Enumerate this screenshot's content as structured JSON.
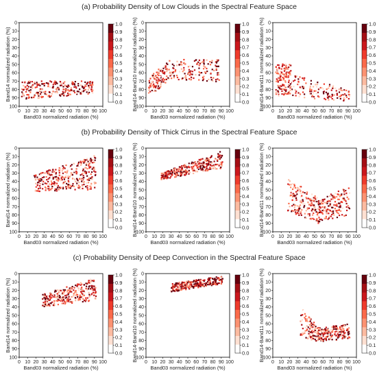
{
  "row_titles": [
    "(a)  Probability Density of Low Clouds in the Spectral Feature Space",
    "(b)  Probability Density of Thick Cirrus in the Spectral Feature Space",
    "(c)  Probability Density of Deep Convection in the Spectral Feature Space"
  ],
  "colorbar": {
    "ticks": [
      "1.0",
      "0.9",
      "0.8",
      "0.7",
      "0.6",
      "0.5",
      "0.4",
      "0.3",
      "0.2",
      "0.1",
      "0.0"
    ],
    "colors": [
      "#ffffff",
      "#fee0d2",
      "#fcbba1",
      "#fc9272",
      "#fb6a4a",
      "#ef3b2c",
      "#cb181d",
      "#a50f15",
      "#67000d"
    ]
  },
  "chart_data": [
    {
      "type": "scatter",
      "row": 0,
      "col": 0,
      "xlabel": "Band03 normalized radiation (%)",
      "ylabel": "Band14 normalized radiation (%)",
      "xlim": [
        0,
        100
      ],
      "ylim": [
        100,
        0
      ],
      "y_inverted": true,
      "xticks": [
        "0",
        "10",
        "20",
        "30",
        "40",
        "50",
        "60",
        "70",
        "80",
        "90",
        "100"
      ],
      "yticks": [
        "0",
        "10",
        "20",
        "30",
        "40",
        "50",
        "60",
        "70",
        "80",
        "90",
        "100"
      ],
      "colorbar_range": [
        0,
        1.0
      ],
      "regions": [
        {
          "x_range": [
            3,
            88
          ],
          "y_top": [
            70,
            70
          ],
          "y_bottom": [
            92,
            85
          ],
          "count": 240,
          "density_mean": 0.65
        }
      ]
    },
    {
      "type": "scatter",
      "row": 0,
      "col": 1,
      "xlabel": "Band03 normalized radiation (%)",
      "ylabel": "Band14-Band10 normalized radiation (%)",
      "xlim": [
        0,
        100
      ],
      "ylim": [
        100,
        0
      ],
      "y_inverted": true,
      "xticks": [
        "0",
        "10",
        "20",
        "30",
        "40",
        "50",
        "60",
        "70",
        "80",
        "90",
        "100"
      ],
      "yticks": [
        "0",
        "10",
        "20",
        "30",
        "40",
        "50",
        "60",
        "70",
        "80",
        "90",
        "100"
      ],
      "colorbar_range": [
        0,
        1.0
      ],
      "regions": [
        {
          "x_range": [
            3,
            25
          ],
          "y_top": [
            65,
            48
          ],
          "y_bottom": [
            88,
            72
          ],
          "count": 110,
          "density_mean": 0.55
        },
        {
          "x_range": [
            25,
            88
          ],
          "y_top": [
            45,
            42
          ],
          "y_bottom": [
            68,
            72
          ],
          "count": 150,
          "density_mean": 0.65
        }
      ]
    },
    {
      "type": "scatter",
      "row": 0,
      "col": 2,
      "xlabel": "Band03 normalized radiation (%)",
      "ylabel": "Band14-Band11 normalized radiation (%)",
      "xlim": [
        0,
        100
      ],
      "ylim": [
        100,
        0
      ],
      "y_inverted": true,
      "xticks": [
        "0",
        "10",
        "20",
        "30",
        "40",
        "50",
        "60",
        "70",
        "80",
        "90",
        "100"
      ],
      "yticks": [
        "0",
        "10",
        "20",
        "30",
        "40",
        "50",
        "60",
        "70",
        "80",
        "90",
        "100"
      ],
      "colorbar_range": [
        0,
        1.0
      ],
      "regions": [
        {
          "x_range": [
            3,
            22
          ],
          "y_top": [
            48,
            50
          ],
          "y_bottom": [
            88,
            85
          ],
          "count": 160,
          "density_mean": 0.5
        },
        {
          "x_range": [
            22,
            92
          ],
          "y_top": [
            62,
            80
          ],
          "y_bottom": [
            90,
            94
          ],
          "count": 130,
          "density_mean": 0.6
        }
      ]
    },
    {
      "type": "scatter",
      "row": 1,
      "col": 0,
      "xlabel": "Band03 normalized radiation (%)",
      "ylabel": "Band14 normalized radiation (%)",
      "xlim": [
        0,
        100
      ],
      "ylim": [
        100,
        0
      ],
      "y_inverted": true,
      "xticks": [
        "0",
        "10",
        "20",
        "30",
        "40",
        "50",
        "60",
        "70",
        "80",
        "90",
        "100"
      ],
      "yticks": [
        "0",
        "10",
        "20",
        "30",
        "40",
        "50",
        "60",
        "70",
        "80",
        "90",
        "100"
      ],
      "colorbar_range": [
        0,
        1.0
      ],
      "regions": [
        {
          "x_range": [
            18,
            92
          ],
          "y_top": [
            32,
            8
          ],
          "y_bottom": [
            52,
            50
          ],
          "count": 330,
          "density_mean": 0.6
        }
      ]
    },
    {
      "type": "scatter",
      "row": 1,
      "col": 1,
      "xlabel": "Band03 normalized radiation (%)",
      "ylabel": "Band14-Band10 normalized radiation (%)",
      "xlim": [
        0,
        100
      ],
      "ylim": [
        100,
        0
      ],
      "y_inverted": true,
      "xticks": [
        "0",
        "10",
        "20",
        "30",
        "40",
        "50",
        "60",
        "70",
        "80",
        "90",
        "100"
      ],
      "yticks": [
        "0",
        "10",
        "20",
        "30",
        "40",
        "50",
        "60",
        "70",
        "80",
        "90",
        "100"
      ],
      "colorbar_range": [
        0,
        1.0
      ],
      "regions": [
        {
          "x_range": [
            18,
            92
          ],
          "y_top": [
            30,
            3
          ],
          "y_bottom": [
            38,
            24
          ],
          "count": 300,
          "density_mean": 0.65
        }
      ]
    },
    {
      "type": "scatter",
      "row": 1,
      "col": 2,
      "xlabel": "Band03 normalized radiation (%)",
      "ylabel": "Band14-Band11 normalized radiation (%)",
      "xlim": [
        0,
        100
      ],
      "ylim": [
        100,
        0
      ],
      "y_inverted": true,
      "xticks": [
        "0",
        "10",
        "20",
        "30",
        "40",
        "50",
        "60",
        "70",
        "80",
        "90",
        "100"
      ],
      "yticks": [
        "0",
        "10",
        "20",
        "30",
        "40",
        "50",
        "60",
        "70",
        "80",
        "90",
        "100"
      ],
      "colorbar_range": [
        0,
        1.0
      ],
      "regions": [
        {
          "x_range": [
            18,
            55
          ],
          "y_top": [
            35,
            60
          ],
          "y_bottom": [
            75,
            90
          ],
          "count": 180,
          "density_mean": 0.55
        },
        {
          "x_range": [
            55,
            92
          ],
          "y_top": [
            62,
            45
          ],
          "y_bottom": [
            88,
            80
          ],
          "count": 160,
          "density_mean": 0.6
        }
      ]
    },
    {
      "type": "scatter",
      "row": 2,
      "col": 0,
      "xlabel": "Band03 normalized radiation (%)",
      "ylabel": "Band14 normalized radiation (%)",
      "xlim": [
        0,
        100
      ],
      "ylim": [
        100,
        0
      ],
      "y_inverted": true,
      "xticks": [
        "0",
        "10",
        "20",
        "30",
        "40",
        "50",
        "60",
        "70",
        "80",
        "90",
        "100"
      ],
      "yticks": [
        "0",
        "10",
        "20",
        "30",
        "40",
        "50",
        "60",
        "70",
        "80",
        "90",
        "100"
      ],
      "colorbar_range": [
        0,
        1.0
      ],
      "regions": [
        {
          "x_range": [
            28,
            92
          ],
          "y_top": [
            25,
            5
          ],
          "y_bottom": [
            40,
            32
          ],
          "count": 280,
          "density_mean": 0.6
        }
      ]
    },
    {
      "type": "scatter",
      "row": 2,
      "col": 1,
      "xlabel": "Band03 normalized radiation (%)",
      "ylabel": "Band14-Band10 normalized radiation (%)",
      "xlim": [
        0,
        100
      ],
      "ylim": [
        100,
        0
      ],
      "y_inverted": true,
      "xticks": [
        "0",
        "10",
        "20",
        "30",
        "40",
        "50",
        "60",
        "70",
        "80",
        "90",
        "100"
      ],
      "yticks": [
        "0",
        "10",
        "20",
        "30",
        "40",
        "50",
        "60",
        "70",
        "80",
        "90",
        "100"
      ],
      "colorbar_range": [
        0,
        1.0
      ],
      "regions": [
        {
          "x_range": [
            30,
            92
          ],
          "y_top": [
            12,
            3
          ],
          "y_bottom": [
            22,
            12
          ],
          "count": 260,
          "density_mean": 0.75
        }
      ]
    },
    {
      "type": "scatter",
      "row": 2,
      "col": 2,
      "xlabel": "Band03 normalized radiation (%)",
      "ylabel": "Band14-Band11 normalized radiation (%)",
      "xlim": [
        0,
        100
      ],
      "ylim": [
        100,
        0
      ],
      "y_inverted": true,
      "xticks": [
        "0",
        "10",
        "20",
        "30",
        "40",
        "50",
        "60",
        "70",
        "80",
        "90",
        "100"
      ],
      "yticks": [
        "0",
        "10",
        "20",
        "30",
        "40",
        "50",
        "60",
        "70",
        "80",
        "90",
        "100"
      ],
      "colorbar_range": [
        0,
        1.0
      ],
      "regions": [
        {
          "x_range": [
            33,
            55
          ],
          "y_top": [
            40,
            65
          ],
          "y_bottom": [
            75,
            82
          ],
          "count": 110,
          "density_mean": 0.55
        },
        {
          "x_range": [
            55,
            92
          ],
          "y_top": [
            65,
            60
          ],
          "y_bottom": [
            82,
            78
          ],
          "count": 170,
          "density_mean": 0.65
        }
      ]
    }
  ]
}
